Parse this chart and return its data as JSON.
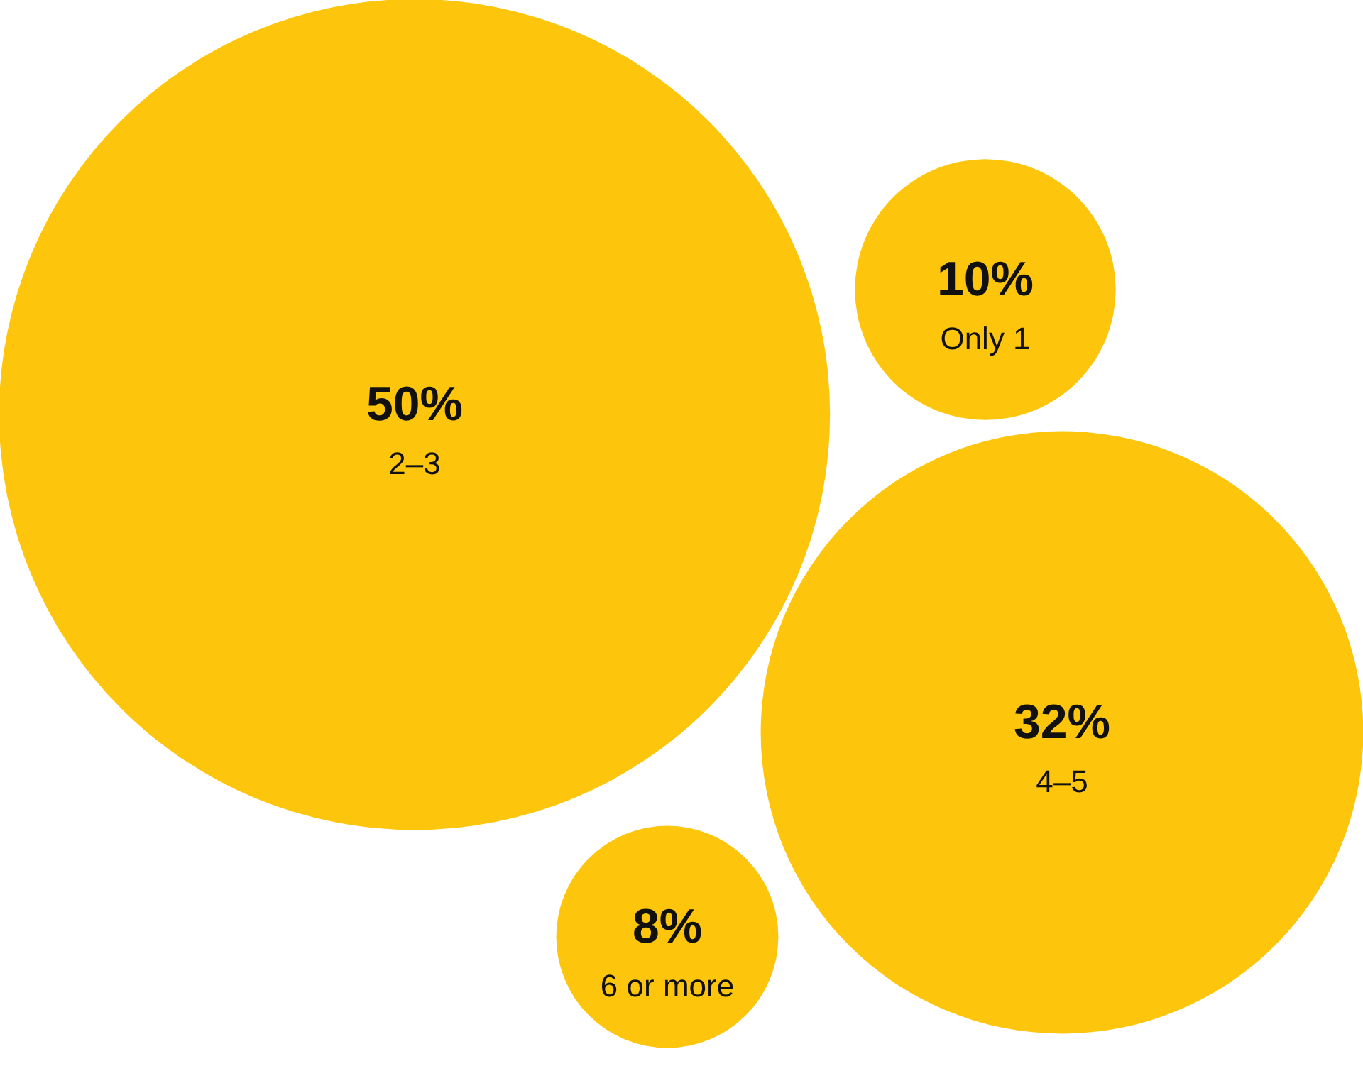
{
  "chart_data": {
    "type": "other",
    "categories": [
      "2–3",
      "Only 1",
      "4–5",
      "6 or more"
    ],
    "values": [
      50,
      10,
      32,
      8
    ],
    "value_labels": [
      "50%",
      "10%",
      "32%",
      "8%"
    ],
    "color": "#fdc50c"
  }
}
